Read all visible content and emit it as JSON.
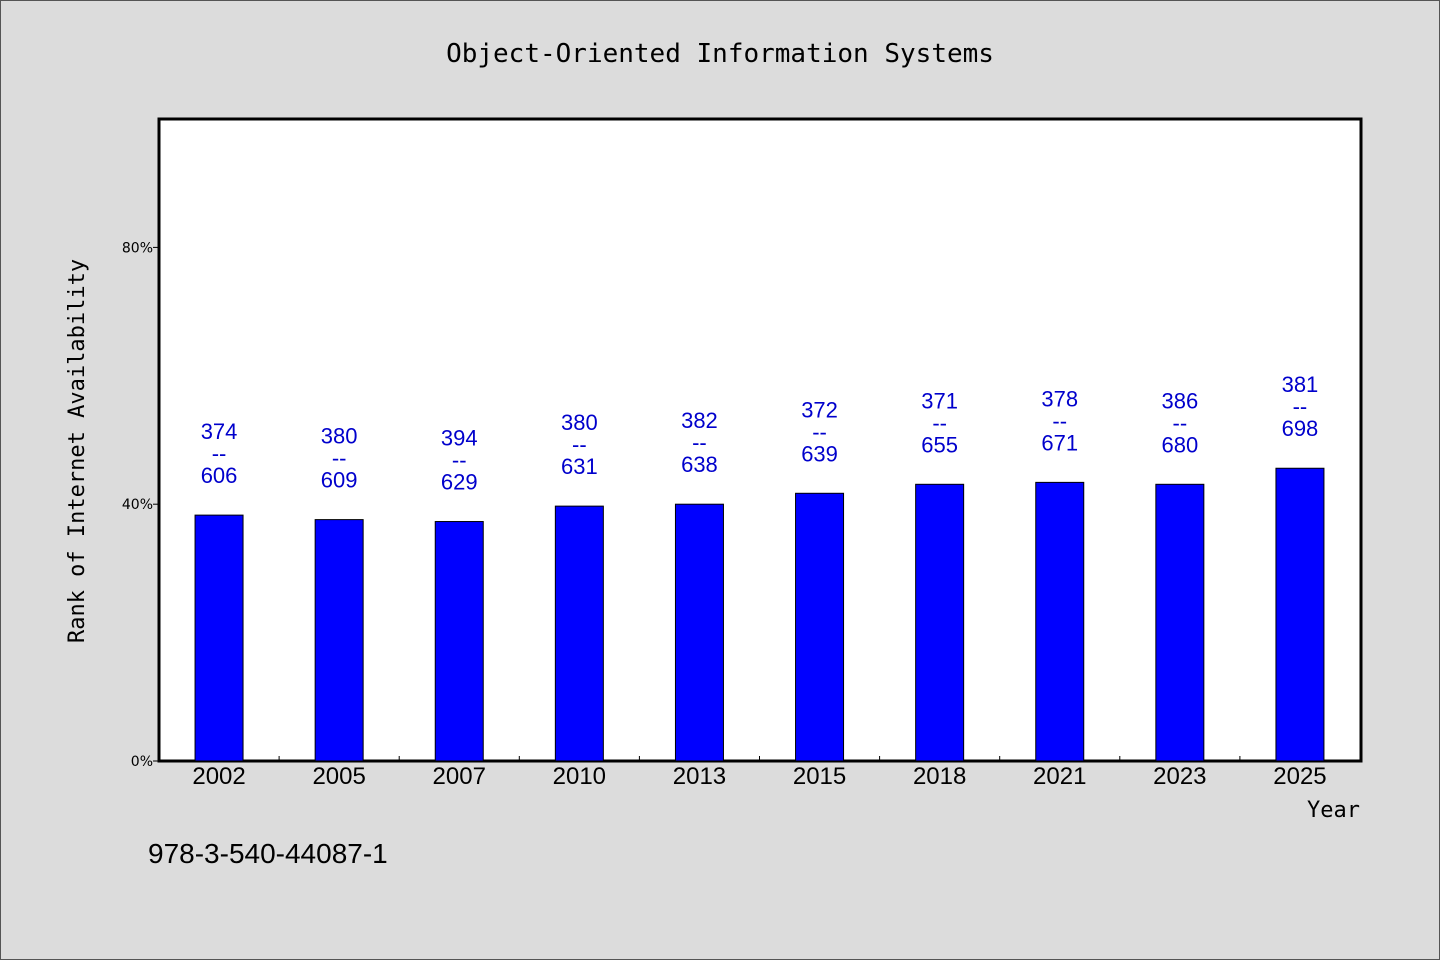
{
  "chart_data": {
    "type": "bar",
    "title": "Object-Oriented Information Systems",
    "xlabel": "Year",
    "ylabel": "Rank of Internet Availability",
    "categories": [
      "2002",
      "2005",
      "2007",
      "2010",
      "2013",
      "2015",
      "2018",
      "2021",
      "2023",
      "2025"
    ],
    "series": [
      {
        "values": [
          0.383,
          0.376,
          0.373,
          0.397,
          0.4,
          0.417,
          0.431,
          0.434,
          0.431,
          0.456
        ],
        "rank": [
          374,
          380,
          394,
          380,
          382,
          372,
          371,
          378,
          386,
          381
        ],
        "total": [
          606,
          609,
          629,
          631,
          638,
          639,
          655,
          671,
          680,
          698
        ],
        "labels": [
          "374\n--\n606",
          "380\n--\n609",
          "394\n--\n629",
          "380\n--\n631",
          "382\n--\n638",
          "372\n--\n639",
          "371\n--\n655",
          "378\n--\n671",
          "386\n--\n680",
          "381\n--\n698"
        ]
      }
    ],
    "ylim": [
      0,
      1.0
    ],
    "yticks": [
      {
        "value": 0,
        "label": "0%"
      },
      {
        "value": 0.4,
        "label": "40%"
      },
      {
        "value": 0.8,
        "label": "80%"
      }
    ],
    "grid": false,
    "colors": {
      "bar": "#0000ff",
      "data_label": "#0000cc",
      "plot_bg": "#ffffff",
      "page_bg": "#dcdcdc"
    }
  },
  "footnote": "978-3-540-44087-1"
}
